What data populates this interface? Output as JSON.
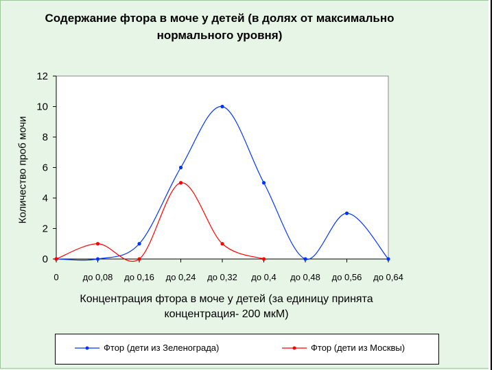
{
  "chart_data": {
    "type": "line",
    "title": "Содержание фтора в моче у детей (в долях от максимально нормального уровня)",
    "title_lines": [
      "Содержание фтора в моче у детей (в долях от максимально",
      "нормального уровня)"
    ],
    "xlabel": "Концентрация фтора в моче у детей (за единицу принята концентрация- 200 мкМ)",
    "xlabel_lines": [
      "Концентрация фтора в моче у детей (за единицу принята",
      "концентрация- 200 мкМ)"
    ],
    "ylabel": "Количество проб мочи",
    "categories": [
      "0",
      "до 0,08",
      "до 0,16",
      "до 0,24",
      "до 0,32",
      "до 0,4",
      "до 0,48",
      "до 0,56",
      "до 0,64"
    ],
    "yticks": [
      "0",
      "2",
      "4",
      "6",
      "8",
      "10",
      "12"
    ],
    "ylim": [
      0,
      12
    ],
    "smooth": true,
    "grid": false,
    "legend_position": "bottom",
    "series": [
      {
        "name": "Фтор (дети из Зеленограда)",
        "color": "#0033ff",
        "values": [
          0,
          0,
          1,
          6,
          10,
          5,
          0,
          3,
          0
        ]
      },
      {
        "name": "Фтор (дети из Москвы)",
        "color": "#ff0000",
        "values": [
          0,
          1,
          0,
          5,
          1,
          0,
          null,
          null,
          null
        ]
      }
    ]
  }
}
